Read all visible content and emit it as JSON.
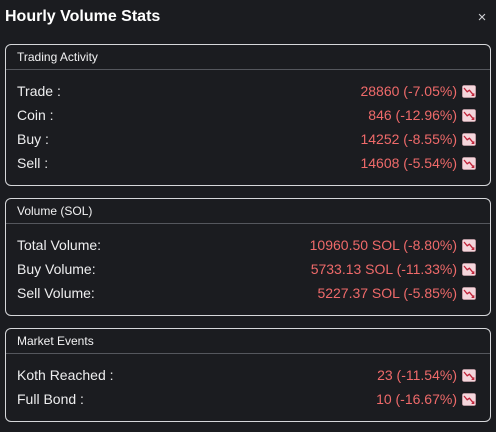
{
  "window": {
    "title": "Hourly Volume Stats",
    "close_glyph": "×"
  },
  "trend_icon": "chart-decreasing-icon",
  "colors": {
    "background": "#1b1c20",
    "border": "#d6d7da",
    "negative": "#ef6a6a",
    "icon_bg": "#f4d6dc",
    "icon_line": "#c0243a"
  },
  "trading_activity": {
    "title": "Trading Activity",
    "rows": [
      {
        "label": "Trade :",
        "value": "28860 (-7.05%)"
      },
      {
        "label": "Coin :",
        "value": "846 (-12.96%)"
      },
      {
        "label": "Buy :",
        "value": "14252 (-8.55%)"
      },
      {
        "label": "Sell :",
        "value": "14608 (-5.54%)"
      }
    ]
  },
  "volume_sol": {
    "title": "Volume (SOL)",
    "rows": [
      {
        "label": "Total Volume:",
        "value": "10960.50 SOL (-8.80%)"
      },
      {
        "label": "Buy Volume:",
        "value": "5733.13 SOL (-11.33%)"
      },
      {
        "label": "Sell Volume:",
        "value": "5227.37 SOL (-5.85%)"
      }
    ]
  },
  "market_events": {
    "title": "Market Events",
    "rows": [
      {
        "label": "Koth Reached :",
        "value": "23 (-11.54%)"
      },
      {
        "label": "Full Bond :",
        "value": "10 (-16.67%)"
      }
    ]
  }
}
